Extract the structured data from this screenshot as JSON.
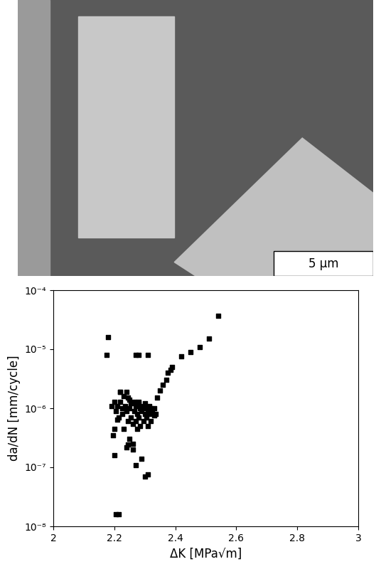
{
  "chart_data": {
    "type": "scatter",
    "x_label": "ΔK [MPa√m]",
    "y_label": "da/dN [mm/cycle]",
    "log": "y",
    "color": "#000000",
    "marker": "square",
    "x": [
      2.175,
      2.18,
      2.2,
      2.205,
      2.215,
      2.19,
      2.195,
      2.2,
      2.2,
      2.205,
      2.21,
      2.21,
      2.215,
      2.22,
      2.22,
      2.225,
      2.225,
      2.23,
      2.23,
      2.235,
      2.24,
      2.24,
      2.245,
      2.245,
      2.25,
      2.25,
      2.255,
      2.255,
      2.26,
      2.26,
      2.265,
      2.265,
      2.27,
      2.27,
      2.275,
      2.275,
      2.28,
      2.28,
      2.285,
      2.285,
      2.29,
      2.29,
      2.295,
      2.295,
      2.3,
      2.3,
      2.305,
      2.305,
      2.31,
      2.31,
      2.315,
      2.315,
      2.32,
      2.32,
      2.325,
      2.33,
      2.335,
      2.24,
      2.25,
      2.26,
      2.28,
      2.22,
      2.235,
      2.245,
      2.27,
      2.28,
      2.31,
      2.27,
      2.3,
      2.31,
      2.33,
      2.34,
      2.35,
      2.36,
      2.37,
      2.375,
      2.385,
      2.39,
      2.42,
      2.45,
      2.48,
      2.51,
      2.54
    ],
    "values": [
      8e-06,
      1.6e-05,
      1.6e-07,
      1.6e-08,
      1.6e-08,
      1.1e-06,
      3.5e-07,
      1.3e-06,
      4.5e-07,
      9e-07,
      6.5e-07,
      1.1e-06,
      7e-07,
      1.9e-06,
      1.3e-06,
      1e-06,
      8e-07,
      1.6e-06,
      4.5e-07,
      1.1e-06,
      9e-07,
      2.2e-07,
      1.5e-06,
      6e-07,
      1e-06,
      3e-07,
      1.2e-06,
      7e-07,
      5.5e-07,
      2.5e-07,
      1.3e-06,
      9e-07,
      1.1e-06,
      6e-07,
      8e-07,
      4.5e-07,
      1.2e-06,
      7e-07,
      1e-06,
      5e-07,
      9e-07,
      1.4e-07,
      1.1e-06,
      6e-07,
      8e-07,
      1.2e-06,
      1e-06,
      7e-07,
      9e-07,
      5e-07,
      1.1e-06,
      8e-07,
      1e-06,
      6e-07,
      9e-07,
      7.5e-07,
      8e-07,
      1.9e-06,
      1.4e-06,
      2e-07,
      1.3e-06,
      1.9e-06,
      1e-06,
      2.4e-07,
      8e-06,
      8e-06,
      8e-06,
      1.1e-07,
      7e-08,
      7.5e-08,
      1e-06,
      1.5e-06,
      2e-06,
      2.5e-06,
      3e-06,
      4e-06,
      4.5e-06,
      5e-06,
      7.5e-06,
      9e-06,
      1.1e-05,
      1.5e-05,
      3.7e-05
    ],
    "xlim": [
      2,
      3
    ],
    "xticks": [
      2,
      2.2,
      2.4,
      2.6,
      2.8,
      3
    ],
    "ylim": [
      1e-08,
      0.0001
    ],
    "yticks": [
      {
        "value": 1e-08,
        "label": "10⁻⁸"
      },
      {
        "value": 1e-07,
        "label": "10⁻⁷"
      },
      {
        "value": 1e-06,
        "label": "10⁻⁶"
      },
      {
        "value": 1e-05,
        "label": "10⁻⁵"
      },
      {
        "value": 0.0001,
        "label": "10⁻⁴"
      }
    ]
  },
  "micrograph": {
    "scale_bar_label": "5 µm"
  }
}
